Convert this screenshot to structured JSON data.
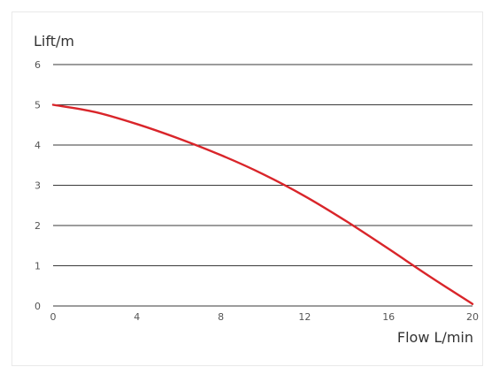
{
  "chart_data": {
    "type": "line",
    "ylabel": "Lift/m",
    "xlabel": "Flow L/min",
    "xlim": [
      0,
      20
    ],
    "ylim": [
      0,
      6
    ],
    "x_ticks": [
      0,
      4,
      8,
      12,
      16,
      20
    ],
    "y_ticks": [
      0,
      1,
      2,
      3,
      4,
      5,
      6
    ],
    "grid": "horizontal",
    "series": [
      {
        "color": "#d9252a",
        "x": [
          0,
          2,
          4,
          6,
          8,
          10,
          12,
          14,
          16,
          18,
          20
        ],
        "y": [
          5.0,
          4.82,
          4.52,
          4.16,
          3.75,
          3.28,
          2.73,
          2.1,
          1.42,
          0.72,
          0.05
        ]
      }
    ]
  }
}
